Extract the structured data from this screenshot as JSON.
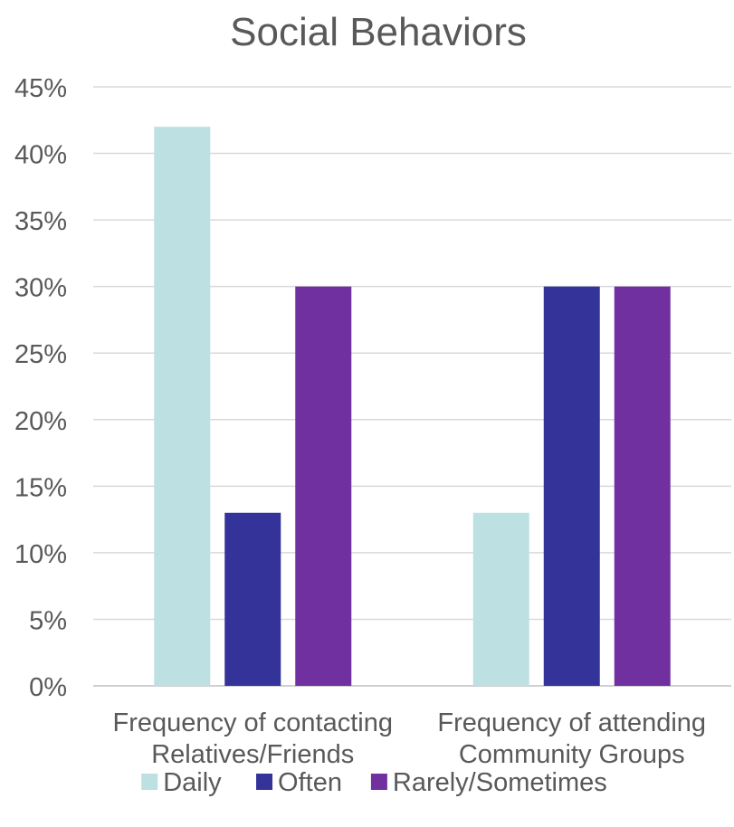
{
  "chart_data": {
    "type": "bar",
    "title": "Social Behaviors",
    "xlabel": "",
    "ylabel": "",
    "categories": [
      [
        "Frequency of contacting",
        "Relatives/Friends"
      ],
      [
        "Frequency of attending",
        "Community Groups"
      ]
    ],
    "series": [
      {
        "name": "Daily",
        "color": "#bde0e3",
        "values": [
          42,
          13
        ]
      },
      {
        "name": "Often",
        "color": "#333399",
        "values": [
          13,
          30
        ]
      },
      {
        "name": "Rarely/Sometimes",
        "color": "#7030a0",
        "values": [
          30,
          30
        ]
      }
    ],
    "ylim": [
      0,
      45
    ],
    "yticks": [
      0,
      5,
      10,
      15,
      20,
      25,
      30,
      35,
      40,
      45
    ],
    "ytick_format": "percent",
    "grid": true,
    "legend": "bottom"
  }
}
